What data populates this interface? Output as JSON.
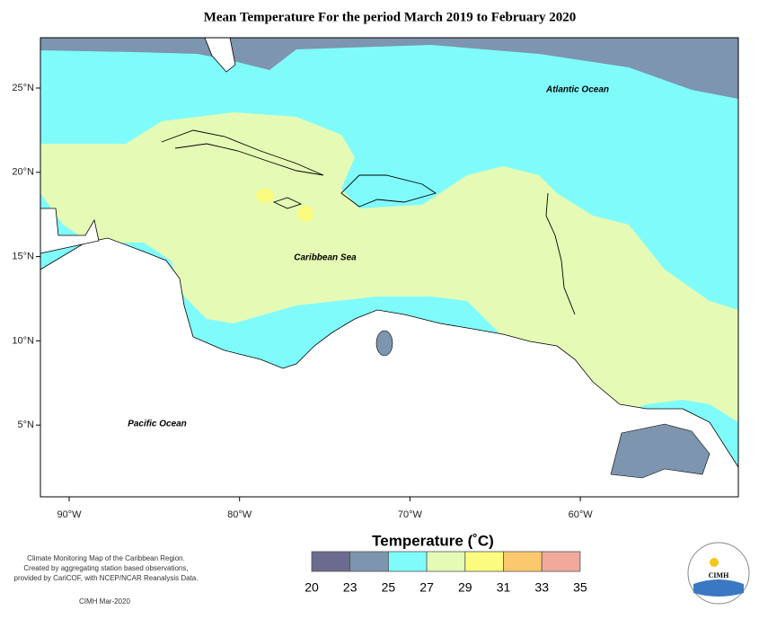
{
  "title": "Mean Temperature For the period March 2019 to February 2020",
  "labels": {
    "atlantic": "Atlantic Ocean",
    "caribbean": "Caribbean Sea",
    "pacific": "Pacific Ocean"
  },
  "latitudes": [
    "25°N",
    "20°N",
    "15°N",
    "10°N",
    "5°N"
  ],
  "longitudes": [
    "90°W",
    "80°W",
    "70°W",
    "60°W"
  ],
  "legend": {
    "title": "Temperature (˚C)",
    "ticks": [
      20,
      23,
      25,
      27,
      29,
      31,
      33,
      35
    ],
    "colors": [
      "#6b6a8f",
      "#7d95ae",
      "#80fbfc",
      "#e5fbb5",
      "#fbfb80",
      "#fcc86e",
      "#f0a99a"
    ]
  },
  "footer": [
    "Climate Monitoring Map of the Caribbean Region.",
    "Created by aggregating station based observations,",
    "provided by CariCOF, with NCEP/NCAR Reanalysis Data."
  ],
  "credit": "CIMH Mar-2020",
  "logo": "CIMH"
}
